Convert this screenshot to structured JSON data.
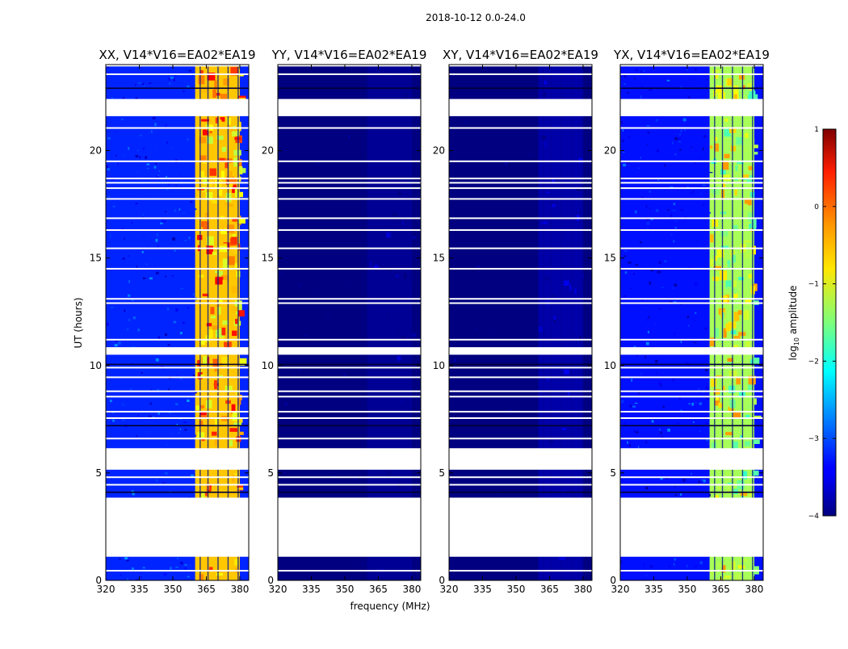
{
  "chart_data": {
    "type": "heatmap",
    "suptitle": "2018-10-12 0.0-24.0",
    "xlabel": "frequency (MHz)",
    "ylabel": "UT (hours)",
    "xlim": [
      320,
      384
    ],
    "ylim": [
      0,
      24
    ],
    "xticks": [
      320,
      335,
      350,
      365,
      380
    ],
    "yticks": [
      0,
      5,
      10,
      15,
      20
    ],
    "colorbar": {
      "label": "log10 amplitude",
      "label_prefix": "log",
      "label_sub": "10",
      "label_suffix": " amplitude",
      "range": [
        -4,
        1
      ],
      "ticks": [
        "1",
        "0",
        "−1",
        "−2",
        "−3",
        "−4"
      ],
      "colormap": "jet"
    },
    "missing_time_ranges_hours": [
      [
        1.1,
        3.85
      ],
      [
        5.15,
        6.15
      ],
      [
        10.5,
        10.85
      ],
      [
        21.6,
        22.4
      ]
    ],
    "bright_band_mhz": [
      360,
      380
    ],
    "panels": [
      {
        "title": "XX, V14*V16=EA02*EA19",
        "polarization": "XX",
        "level_outside_band": -3.2,
        "level_in_band": -0.6
      },
      {
        "title": "YY, V14*V16=EA02*EA19",
        "polarization": "YY",
        "level_outside_band": -4.0,
        "level_in_band": -3.9
      },
      {
        "title": "XY, V14*V16=EA02*EA19",
        "polarization": "XY",
        "level_outside_band": -4.0,
        "level_in_band": -3.8
      },
      {
        "title": "YX, V14*V16=EA02*EA19",
        "polarization": "YX",
        "level_outside_band": -3.3,
        "level_in_band": -1.3
      }
    ]
  }
}
